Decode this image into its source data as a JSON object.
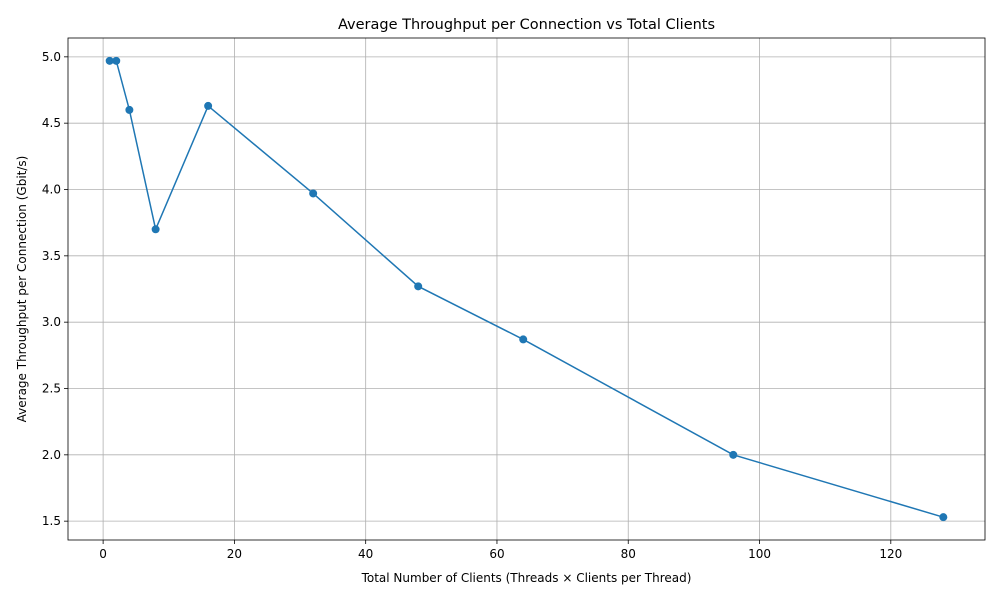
{
  "chart_data": {
    "type": "line",
    "title": "Average Throughput per Connection vs Total Clients",
    "xlabel": "Total Number of Clients (Threads × Clients per Thread)",
    "ylabel": "Average Throughput per Connection (Gbit/s)",
    "x": [
      1,
      2,
      4,
      8,
      16,
      32,
      48,
      64,
      96,
      128
    ],
    "series": [
      {
        "values": [
          4.97,
          4.97,
          4.6,
          3.7,
          4.63,
          3.97,
          3.27,
          2.87,
          2.0,
          1.53
        ]
      }
    ],
    "xlim": [
      -5.35,
      134.35
    ],
    "ylim": [
      1.358,
      5.142
    ],
    "xticks": [
      0,
      20,
      40,
      60,
      80,
      100,
      120
    ],
    "yticks": [
      1.5,
      2.0,
      2.5,
      3.0,
      3.5,
      4.0,
      4.5,
      5.0
    ],
    "xtick_labels": [
      "0",
      "20",
      "40",
      "60",
      "80",
      "100",
      "120"
    ],
    "ytick_labels": [
      "1.5",
      "2.0",
      "2.5",
      "3.0",
      "3.5",
      "4.0",
      "4.5",
      "5.0"
    ],
    "grid": true,
    "marker": "circle",
    "color": "#1f77b4"
  }
}
